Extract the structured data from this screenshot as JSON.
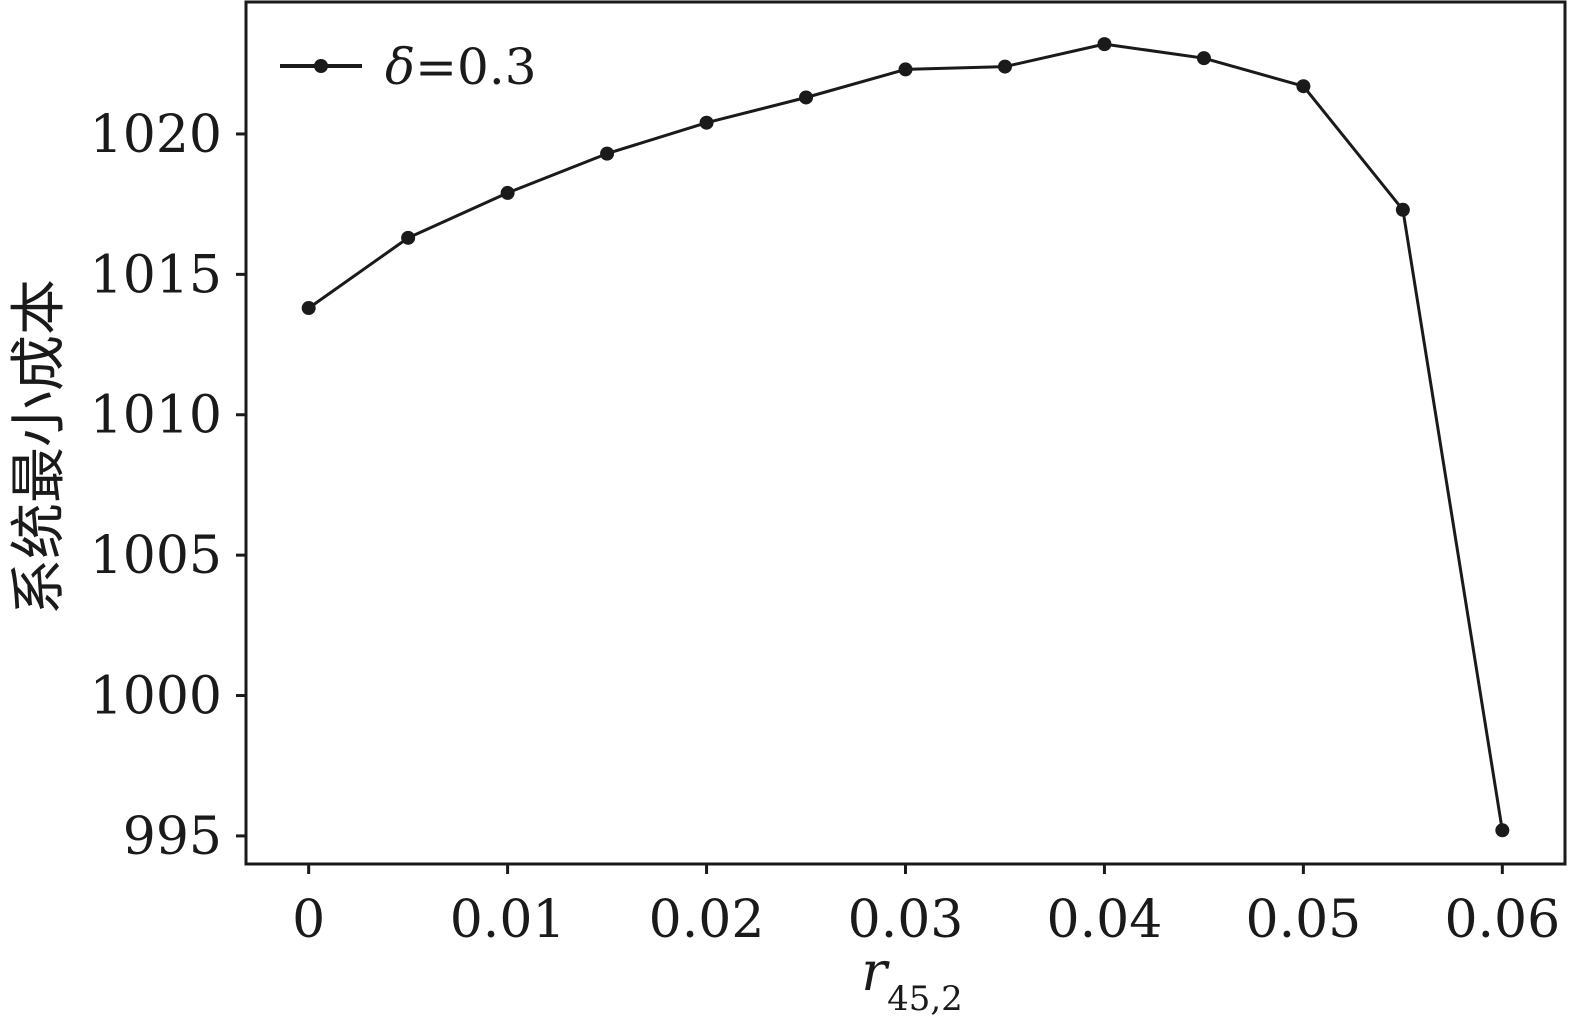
{
  "chart_data": {
    "type": "line",
    "x": [
      0,
      0.005,
      0.01,
      0.015,
      0.02,
      0.025,
      0.03,
      0.035,
      0.04,
      0.045,
      0.05,
      0.055,
      0.06
    ],
    "series": [
      {
        "name": "δ=0.3",
        "legend_symbol": "δ",
        "legend_value": "=0.3",
        "values": [
          1013.8,
          1016.3,
          1017.9,
          1019.3,
          1020.4,
          1021.3,
          1022.3,
          1022.4,
          1023.2,
          1022.7,
          1021.7,
          1017.3,
          995.2
        ]
      }
    ],
    "xlabel": "r",
    "xlabel_subscript": "45,2",
    "ylabel": "系统最小成本",
    "x_ticks": [
      0,
      0.01,
      0.02,
      0.03,
      0.04,
      0.05,
      0.06
    ],
    "x_tick_labels": [
      "0",
      "0.01",
      "0.02",
      "0.03",
      "0.04",
      "0.05",
      "0.06"
    ],
    "y_ticks": [
      995,
      1000,
      1005,
      1010,
      1015,
      1020
    ],
    "y_tick_labels": [
      "995",
      "1000",
      "1005",
      "1010",
      "1015",
      "1020"
    ],
    "xlim": [
      -0.00315,
      0.06315
    ],
    "ylim": [
      994.0,
      1024.7
    ],
    "grid": false,
    "legend_position": "top-left",
    "line_color": "#1a1a1a",
    "marker": "circle"
  }
}
